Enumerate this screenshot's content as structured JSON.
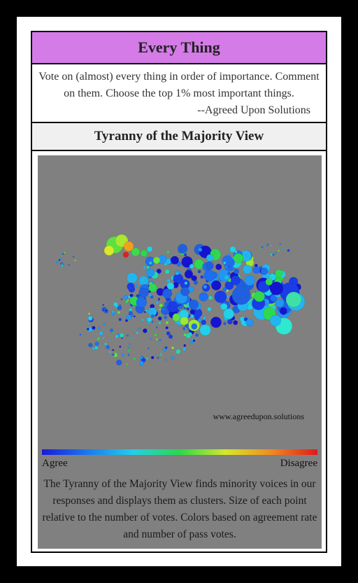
{
  "card": {
    "title": "Every Thing",
    "description": "Vote on (almost) every thing in order of importance. Comment on them. Choose the top 1% most important things.",
    "attribution": "--Agreed Upon Solutions",
    "view_title": "Tyranny of the Majority View",
    "watermark": "www.agreedupon.solutions",
    "scale_left": "Agree",
    "scale_right": "Disagree",
    "footer": "The Tyranny of the Majority View finds minority voices in our responses and displays them as clusters. Size of each point relative to the number of votes. Colors based on agreement rate and number of pass votes."
  },
  "colors": {
    "title_bg": "#d47be8",
    "panel_bg": "#808080",
    "scale": [
      "#1a1ad8",
      "#1a7af0",
      "#22d0e8",
      "#2bd84a",
      "#d6e82a",
      "#f08a20",
      "#e01a1a"
    ]
  }
}
